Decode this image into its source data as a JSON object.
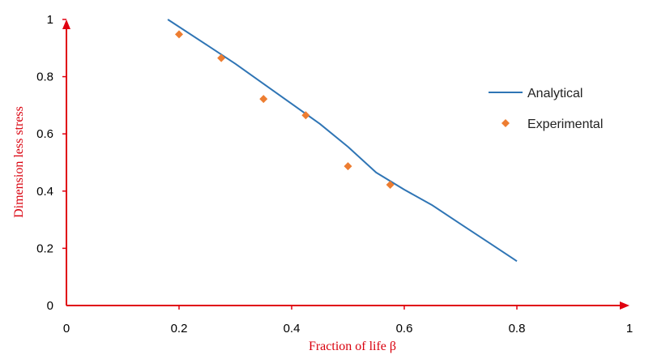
{
  "chart_data": {
    "type": "line",
    "xlabel": "Fraction of life  β",
    "ylabel": "Dimension  less stress",
    "xlim": [
      0,
      1
    ],
    "ylim": [
      0,
      1
    ],
    "x_ticks": [
      "0",
      "0.2",
      "0.4",
      "0.6",
      "0.8",
      "1"
    ],
    "y_ticks": [
      "0",
      "0.2",
      "0.4",
      "0.6",
      "0.8",
      "1"
    ],
    "grid": false,
    "legend_position": "right",
    "series": [
      {
        "name": "Analytical",
        "kind": "line",
        "color": "#2f75b5",
        "x": [
          0.18,
          0.25,
          0.3,
          0.35,
          0.4,
          0.45,
          0.5,
          0.55,
          0.6,
          0.65,
          0.7,
          0.75,
          0.8
        ],
        "y": [
          1.0,
          0.91,
          0.845,
          0.775,
          0.705,
          0.635,
          0.555,
          0.465,
          0.405,
          0.35,
          0.285,
          0.22,
          0.155
        ]
      },
      {
        "name": "Experimental",
        "kind": "scatter",
        "marker": "diamond",
        "color": "#ed7d31",
        "x": [
          0.2,
          0.275,
          0.35,
          0.425,
          0.5,
          0.575
        ],
        "y": [
          0.948,
          0.865,
          0.722,
          0.665,
          0.487,
          0.422
        ]
      }
    ],
    "axis_color": "#e00010"
  }
}
